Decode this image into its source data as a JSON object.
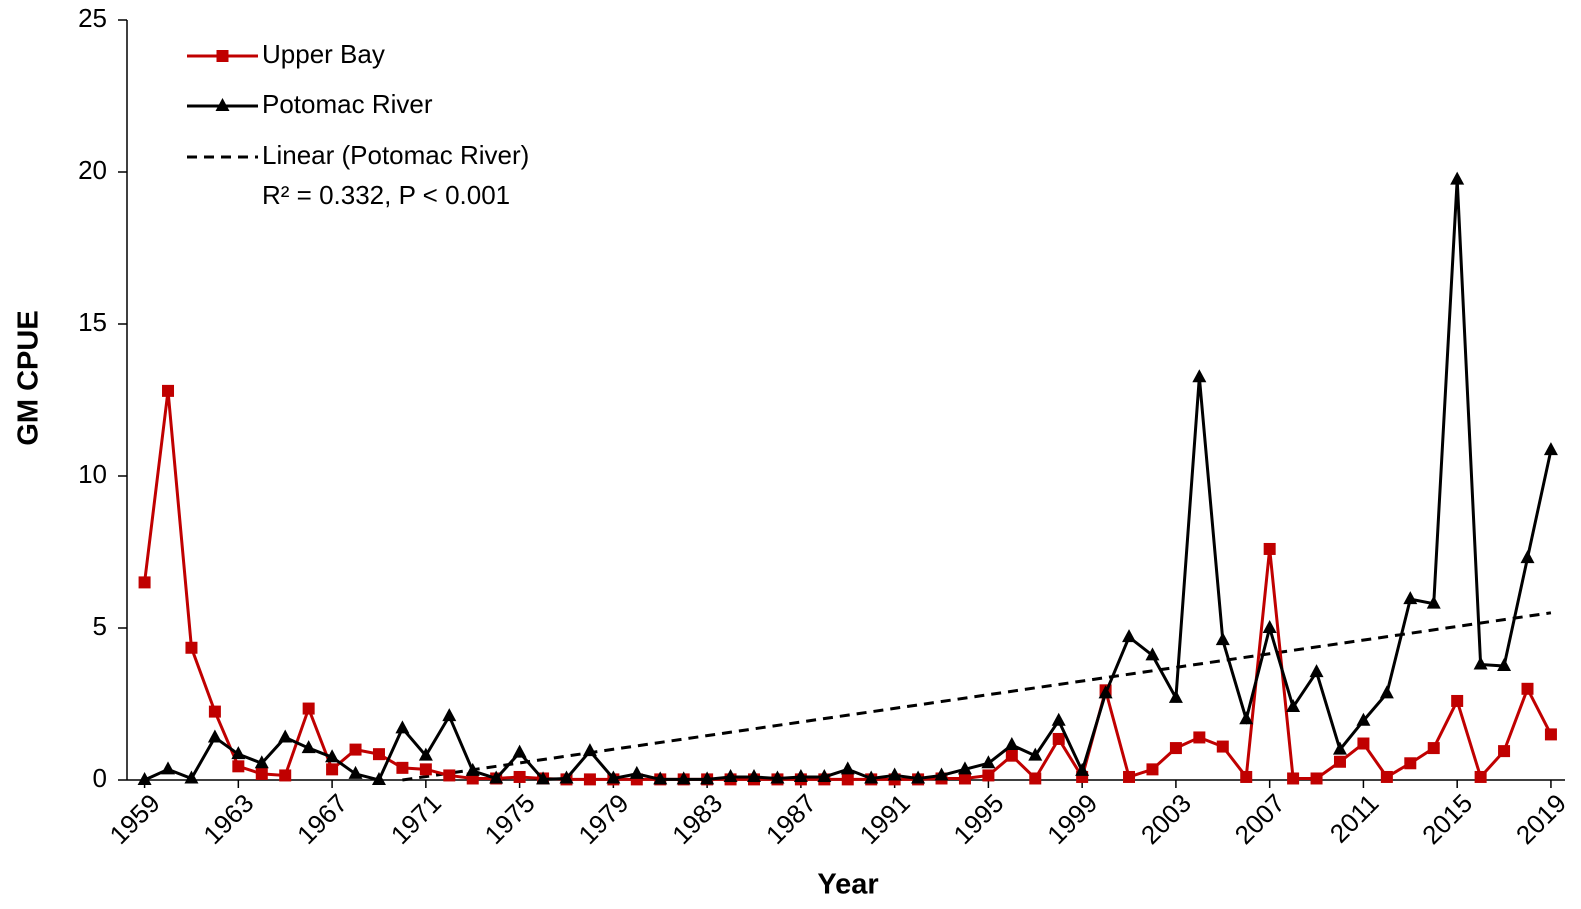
{
  "chart_data": {
    "type": "line",
    "x_label": "Year",
    "y_label": "GM CPUE",
    "x": [
      1959,
      1960,
      1961,
      1962,
      1963,
      1964,
      1965,
      1966,
      1967,
      1968,
      1969,
      1970,
      1971,
      1972,
      1973,
      1974,
      1975,
      1976,
      1977,
      1978,
      1979,
      1980,
      1981,
      1982,
      1983,
      1984,
      1985,
      1986,
      1987,
      1988,
      1989,
      1990,
      1991,
      1992,
      1993,
      1994,
      1995,
      1996,
      1997,
      1998,
      1999,
      2000,
      2001,
      2002,
      2003,
      2004,
      2005,
      2006,
      2007,
      2008,
      2009,
      2010,
      2011,
      2012,
      2013,
      2014,
      2015,
      2016,
      2017,
      2018,
      2019
    ],
    "series": [
      {
        "name": "Upper Bay",
        "color": "#c00000",
        "marker": "square",
        "values": [
          6.5,
          12.8,
          4.35,
          2.25,
          0.45,
          0.2,
          0.15,
          2.35,
          0.35,
          1.0,
          0.85,
          0.4,
          0.35,
          0.15,
          0.05,
          0.05,
          0.1,
          0.05,
          0.02,
          0.02,
          0.02,
          0.02,
          0.02,
          0.02,
          0.02,
          0.02,
          0.02,
          0.02,
          0.02,
          0.02,
          0.02,
          0.02,
          0.02,
          0.02,
          0.05,
          0.05,
          0.15,
          0.8,
          0.05,
          1.35,
          0.1,
          2.95,
          0.1,
          0.35,
          1.05,
          1.4,
          1.1,
          0.1,
          7.6,
          0.05,
          0.05,
          0.6,
          1.2,
          0.1,
          0.55,
          1.05,
          2.6,
          0.1,
          0.95,
          3.0,
          1.5
        ]
      },
      {
        "name": "Potomac River",
        "color": "#000000",
        "marker": "triangle",
        "values": [
          0,
          0.35,
          0.05,
          1.4,
          0.85,
          0.55,
          1.4,
          1.05,
          0.75,
          0.2,
          0,
          1.7,
          0.8,
          2.1,
          0.3,
          0.05,
          0.9,
          0.02,
          0.05,
          0.95,
          0.05,
          0.2,
          0.02,
          0.02,
          0.02,
          0.1,
          0.1,
          0.05,
          0.1,
          0.1,
          0.35,
          0.05,
          0.15,
          0.05,
          0.15,
          0.35,
          0.55,
          1.15,
          0.8,
          1.95,
          0.3,
          2.85,
          4.7,
          4.1,
          2.7,
          13.25,
          4.6,
          2.0,
          5.0,
          2.4,
          3.55,
          1.0,
          1.95,
          2.85,
          5.95,
          5.8,
          19.75,
          3.8,
          3.75,
          7.3,
          10.85
        ]
      }
    ],
    "trend": {
      "name": "Linear (Potomac River)",
      "color": "#000000",
      "x": [
        1970,
        2019
      ],
      "values": [
        0,
        5.5
      ]
    },
    "annotation": "R² = 0.332, P < 0.001",
    "xlim": [
      1958.25,
      2019.6
    ],
    "xticks": [
      1959,
      1963,
      1967,
      1971,
      1975,
      1979,
      1983,
      1987,
      1991,
      1995,
      1999,
      2003,
      2007,
      2011,
      2015,
      2019
    ],
    "ylim": [
      0,
      25
    ],
    "yticks": [
      0,
      5,
      10,
      15,
      20,
      25
    ],
    "legend": "top-left",
    "grid": false
  }
}
